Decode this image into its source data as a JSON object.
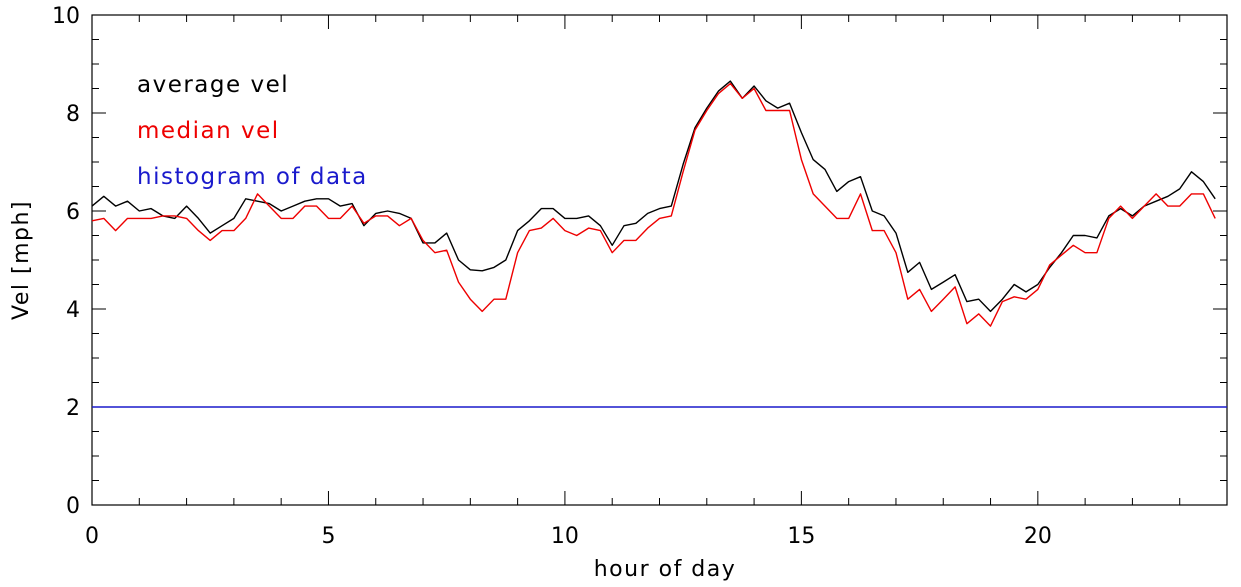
{
  "chart_data": {
    "type": "line",
    "title": "",
    "xlabel": "hour of day",
    "ylabel": "Vel [mph]",
    "xlim": [
      0,
      24
    ],
    "ylim": [
      0,
      10
    ],
    "x_ticks": [
      0,
      5,
      10,
      15,
      20
    ],
    "y_ticks": [
      0,
      2,
      4,
      6,
      8,
      10
    ],
    "x_tick_labels": [
      "0",
      "5",
      "10",
      "15",
      "20"
    ],
    "y_tick_labels": [
      "0",
      "2",
      "4",
      "6",
      "8",
      "10"
    ],
    "grid": false,
    "legend_position": "top-left",
    "series": [
      {
        "name": "average vel",
        "color": "#000000",
        "x": [
          0,
          0.25,
          0.5,
          0.75,
          1,
          1.25,
          1.5,
          1.75,
          2,
          2.25,
          2.5,
          2.75,
          3,
          3.25,
          3.5,
          3.75,
          4,
          4.25,
          4.5,
          4.75,
          5,
          5.25,
          5.5,
          5.75,
          6,
          6.25,
          6.5,
          6.75,
          7,
          7.25,
          7.5,
          7.75,
          8,
          8.25,
          8.5,
          8.75,
          9,
          9.25,
          9.5,
          9.75,
          10,
          10.25,
          10.5,
          10.75,
          11,
          11.25,
          11.5,
          11.75,
          12,
          12.25,
          12.5,
          12.75,
          13,
          13.25,
          13.5,
          13.75,
          14,
          14.25,
          14.5,
          14.75,
          15,
          15.25,
          15.5,
          15.75,
          16,
          16.25,
          16.5,
          16.75,
          17,
          17.25,
          17.5,
          17.75,
          18,
          18.25,
          18.5,
          18.75,
          19,
          19.25,
          19.5,
          19.75,
          20,
          20.25,
          20.5,
          20.75,
          21,
          21.25,
          21.5,
          21.75,
          22,
          22.25,
          22.5,
          22.75,
          23,
          23.25,
          23.5,
          23.75
        ],
        "values": [
          6.1,
          6.3,
          6.1,
          6.2,
          6.0,
          6.05,
          5.9,
          5.85,
          6.1,
          5.85,
          5.55,
          5.7,
          5.85,
          6.25,
          6.2,
          6.15,
          6.0,
          6.1,
          6.2,
          6.25,
          6.25,
          6.1,
          6.15,
          5.7,
          5.95,
          6.0,
          5.95,
          5.85,
          5.35,
          5.35,
          5.55,
          5.0,
          4.8,
          4.78,
          4.85,
          5.0,
          5.6,
          5.8,
          6.05,
          6.05,
          5.85,
          5.85,
          5.9,
          5.7,
          5.3,
          5.7,
          5.75,
          5.95,
          6.05,
          6.1,
          6.95,
          7.7,
          8.1,
          8.45,
          8.65,
          8.3,
          8.55,
          8.25,
          8.1,
          8.2,
          7.6,
          7.05,
          6.85,
          6.4,
          6.6,
          6.7,
          6.0,
          5.9,
          5.55,
          4.75,
          4.95,
          4.4,
          4.55,
          4.7,
          4.15,
          4.2,
          3.95,
          4.2,
          4.5,
          4.35,
          4.5,
          4.85,
          5.15,
          5.5,
          5.5,
          5.45,
          5.9,
          6.05,
          5.9,
          6.1,
          6.2,
          6.3,
          6.45,
          6.8,
          6.6,
          6.25
        ]
      },
      {
        "name": "median vel",
        "color": "#ee0000",
        "x": [
          0,
          0.25,
          0.5,
          0.75,
          1,
          1.25,
          1.5,
          1.75,
          2,
          2.25,
          2.5,
          2.75,
          3,
          3.25,
          3.5,
          3.75,
          4,
          4.25,
          4.5,
          4.75,
          5,
          5.25,
          5.5,
          5.75,
          6,
          6.25,
          6.5,
          6.75,
          7,
          7.25,
          7.5,
          7.75,
          8,
          8.25,
          8.5,
          8.75,
          9,
          9.25,
          9.5,
          9.75,
          10,
          10.25,
          10.5,
          10.75,
          11,
          11.25,
          11.5,
          11.75,
          12,
          12.25,
          12.5,
          12.75,
          13,
          13.25,
          13.5,
          13.75,
          14,
          14.25,
          14.5,
          14.75,
          15,
          15.25,
          15.5,
          15.75,
          16,
          16.25,
          16.5,
          16.75,
          17,
          17.25,
          17.5,
          17.75,
          18,
          18.25,
          18.5,
          18.75,
          19,
          19.25,
          19.5,
          19.75,
          20,
          20.25,
          20.5,
          20.75,
          21,
          21.25,
          21.5,
          21.75,
          22,
          22.25,
          22.5,
          22.75,
          23,
          23.25,
          23.5,
          23.75
        ],
        "values": [
          5.8,
          5.85,
          5.6,
          5.85,
          5.85,
          5.85,
          5.9,
          5.9,
          5.85,
          5.6,
          5.4,
          5.6,
          5.6,
          5.85,
          6.35,
          6.1,
          5.85,
          5.85,
          6.1,
          6.1,
          5.85,
          5.85,
          6.1,
          5.75,
          5.9,
          5.9,
          5.7,
          5.85,
          5.4,
          5.15,
          5.2,
          4.55,
          4.2,
          3.95,
          4.2,
          4.2,
          5.15,
          5.6,
          5.65,
          5.85,
          5.6,
          5.5,
          5.65,
          5.6,
          5.15,
          5.4,
          5.4,
          5.65,
          5.85,
          5.9,
          6.8,
          7.65,
          8.05,
          8.4,
          8.6,
          8.3,
          8.5,
          8.05,
          8.05,
          8.05,
          7.05,
          6.35,
          6.1,
          5.85,
          5.85,
          6.35,
          5.6,
          5.6,
          5.15,
          4.2,
          4.4,
          3.95,
          4.2,
          4.45,
          3.7,
          3.9,
          3.65,
          4.15,
          4.25,
          4.2,
          4.4,
          4.9,
          5.1,
          5.3,
          5.15,
          5.15,
          5.85,
          6.1,
          5.85,
          6.1,
          6.35,
          6.1,
          6.1,
          6.35,
          6.35,
          5.85
        ]
      },
      {
        "name": "histogram of data",
        "color": "#1a1acc",
        "x": [
          0,
          24
        ],
        "values": [
          2.0,
          2.0
        ]
      }
    ]
  }
}
